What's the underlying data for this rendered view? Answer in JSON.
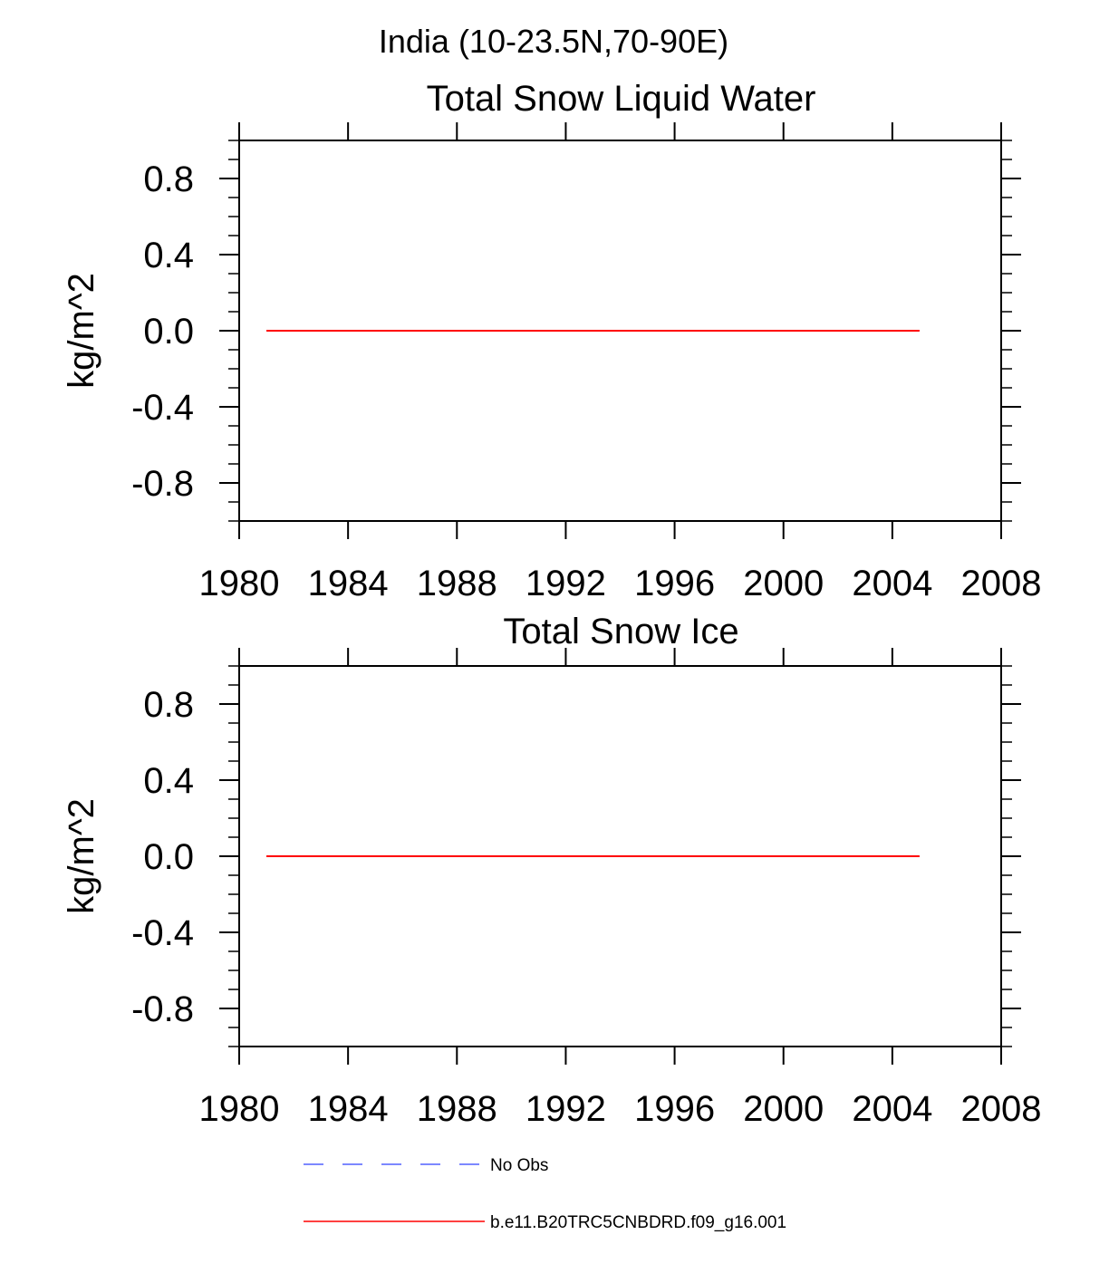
{
  "figure": {
    "suptitle": "India (10-23.5N,70-90E)"
  },
  "chart_data": [
    {
      "type": "line",
      "title": "Total Snow Liquid Water",
      "xlabel": "",
      "ylabel": "kg/m^2",
      "xlim": [
        1980,
        2008
      ],
      "ylim": [
        -1.0,
        1.0
      ],
      "x_ticks": [
        1980,
        1984,
        1988,
        1992,
        1996,
        2000,
        2004,
        2008
      ],
      "x_tick_labels": [
        "1980",
        "1984",
        "1988",
        "1992",
        "1996",
        "2000",
        "2004",
        "2008"
      ],
      "y_ticks": [
        0.8,
        0.4,
        0.0,
        -0.4,
        -0.8
      ],
      "y_tick_labels": [
        "0.8",
        "0.4",
        "0.0",
        "-0.4",
        "-0.8"
      ],
      "grid": false,
      "series": [
        {
          "name": "b.e11.B20TRC5CNBDRD.f09_g16.001",
          "color": "#ff0000",
          "style": "solid",
          "x": [
            1981,
            2005
          ],
          "y": [
            0.0,
            0.0
          ]
        }
      ]
    },
    {
      "type": "line",
      "title": "Total Snow Ice",
      "xlabel": "",
      "ylabel": "kg/m^2",
      "xlim": [
        1980,
        2008
      ],
      "ylim": [
        -1.0,
        1.0
      ],
      "x_ticks": [
        1980,
        1984,
        1988,
        1992,
        1996,
        2000,
        2004,
        2008
      ],
      "x_tick_labels": [
        "1980",
        "1984",
        "1988",
        "1992",
        "1996",
        "2000",
        "2004",
        "2008"
      ],
      "y_ticks": [
        0.8,
        0.4,
        0.0,
        -0.4,
        -0.8
      ],
      "y_tick_labels": [
        "0.8",
        "0.4",
        "0.0",
        "-0.4",
        "-0.8"
      ],
      "grid": false,
      "series": [
        {
          "name": "b.e11.B20TRC5CNBDRD.f09_g16.001",
          "color": "#ff0000",
          "style": "solid",
          "x": [
            1981,
            2005
          ],
          "y": [
            0.0,
            0.0
          ]
        }
      ]
    }
  ],
  "legend": {
    "placement": "bottom",
    "entries": [
      {
        "label": "No Obs",
        "color": "#5060ff",
        "style": "dashed"
      },
      {
        "label": "b.e11.B20TRC5CNBDRD.f09_g16.001",
        "color": "#ff0000",
        "style": "solid"
      }
    ]
  }
}
